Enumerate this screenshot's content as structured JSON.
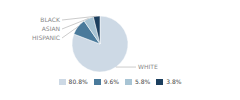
{
  "chart_data": {
    "type": "pie",
    "categories": [
      "WHITE",
      "HISPANIC",
      "ASIAN",
      "BLACK"
    ],
    "values": [
      80.8,
      9.6,
      5.8,
      3.8
    ],
    "value_labels": [
      "80.8%",
      "9.6%",
      "5.8%",
      "3.8%"
    ],
    "colors": [
      "#cdd9e5",
      "#4a7a9b",
      "#a8c4d4",
      "#1c3f5e"
    ],
    "legend": "bottom"
  }
}
